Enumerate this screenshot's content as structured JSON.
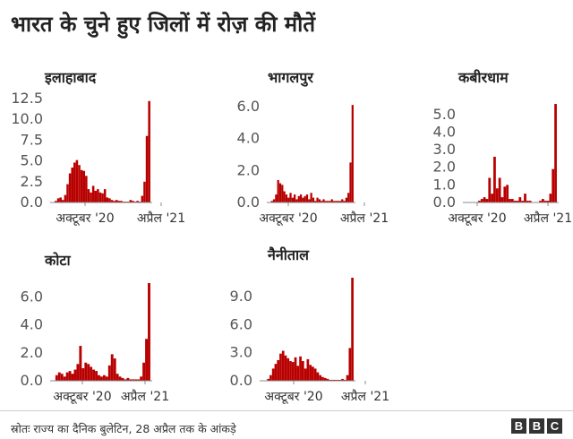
{
  "title": "भारत के चुने हुए जिलों में रोज़ की मौतें",
  "source": "स्रोतः राज्य का दैनिक बुलेटिन, 28 अप्रैल तक के आंकड़े",
  "logo_letters": [
    "B",
    "B",
    "C"
  ],
  "colors": {
    "bar": "#b80000",
    "axis": "#888888"
  },
  "chart_data": [
    {
      "type": "area",
      "title": "इलाहाबाद",
      "yticks": [
        "0.0",
        "2.5",
        "5.0",
        "7.5",
        "10.0",
        "12.5"
      ],
      "ylim": [
        0,
        12.5
      ],
      "xlabels": [
        "अक्टूबर '20",
        "अप्रैल '21"
      ],
      "peak": 12.2,
      "series": [
        0,
        0,
        0.2,
        0.5,
        0.6,
        0.3,
        0.9,
        2.2,
        3.5,
        4.2,
        4.8,
        5.1,
        4.5,
        3.9,
        3.8,
        3.2,
        1.6,
        1.2,
        2.0,
        1.4,
        1.6,
        1.2,
        1.1,
        1.6,
        0.6,
        0.5,
        0.3,
        0.2,
        0.3,
        0.2,
        0.2,
        0.1,
        0.1,
        0.1,
        0.3,
        0.2,
        0.1,
        0.2,
        0.1,
        0.8,
        2.5,
        8.0,
        12.2
      ]
    },
    {
      "type": "area",
      "title": "भागलपुर",
      "yticks": [
        "0.0",
        "2.0",
        "4.0",
        "6.0"
      ],
      "ylim": [
        0,
        6.5
      ],
      "xlabels": [
        "अक्टूबर '20",
        "अप्रैल '21"
      ],
      "peak": 6.1,
      "series": [
        0,
        0,
        0.1,
        0.2,
        0.5,
        1.4,
        1.2,
        1.1,
        0.7,
        0.5,
        0.3,
        0.6,
        0.3,
        0.5,
        0.2,
        0.4,
        0.5,
        0.3,
        0.4,
        0.5,
        0.2,
        0.6,
        0.3,
        0.1,
        0.3,
        0.2,
        0.1,
        0.2,
        0.1,
        0.1,
        0.1,
        0.2,
        0.1,
        0.1,
        0.1,
        0.1,
        0.2,
        0.1,
        0.3,
        0.6,
        2.5,
        6.1
      ]
    },
    {
      "type": "area",
      "title": "कबीरधाम",
      "yticks": [
        "0.0",
        "1.0",
        "2.0",
        "3.0",
        "4.0",
        "5.0"
      ],
      "ylim": [
        0,
        5.5
      ],
      "xlabels": [
        "अक्टूबर '20",
        "अप्रैल '21"
      ],
      "peak": 5.6,
      "series": [
        0,
        0,
        0,
        0,
        0,
        0,
        0.1,
        0.2,
        0.3,
        0.2,
        1.4,
        0.5,
        2.6,
        0.8,
        1.4,
        0.3,
        0.9,
        1.0,
        0.2,
        0.2,
        0.1,
        0.1,
        0.3,
        0.1,
        0.5,
        0.1,
        0.1,
        0,
        0,
        0,
        0.1,
        0.2,
        0.1,
        0.1,
        0.5,
        1.9,
        5.6
      ]
    },
    {
      "type": "area",
      "title": "कोटा",
      "yticks": [
        "0.0",
        "2.0",
        "4.0",
        "6.0"
      ],
      "ylim": [
        0,
        7
      ],
      "xlabels": [
        "अक्टूबर '20",
        "अप्रैल '21"
      ],
      "peak": 7.0,
      "series": [
        0,
        0,
        0.4,
        0.6,
        0.5,
        0.3,
        0.6,
        0.7,
        0.5,
        0.8,
        1.2,
        2.5,
        0.9,
        1.3,
        1.2,
        1.0,
        0.8,
        0.7,
        0.4,
        0.3,
        0.4,
        0.3,
        1.1,
        1.9,
        1.6,
        0.5,
        0.3,
        0.2,
        0.1,
        0.2,
        0.1,
        0.1,
        0.1,
        0.1,
        0.3,
        1.3,
        3.0,
        7.0
      ]
    },
    {
      "type": "area",
      "title": "नैनीताल",
      "yticks": [
        "0.0",
        "3.0",
        "6.0",
        "9.0"
      ],
      "ylim": [
        0,
        11
      ],
      "xlabels": [
        "अक्टूबर '20",
        "अप्रैल '21"
      ],
      "peak": 11.0,
      "series": [
        0,
        0,
        0,
        0.2,
        0.6,
        1.3,
        1.8,
        2.2,
        2.9,
        3.2,
        2.7,
        2.4,
        2.1,
        2.0,
        2.5,
        1.6,
        2.6,
        2.1,
        1.3,
        2.3,
        1.7,
        1.5,
        1.3,
        0.9,
        0.6,
        0.4,
        0.3,
        0.2,
        0.1,
        0.1,
        0.1,
        0.1,
        0.1,
        0.2,
        0.1,
        0.6,
        3.5,
        11.0
      ]
    }
  ]
}
